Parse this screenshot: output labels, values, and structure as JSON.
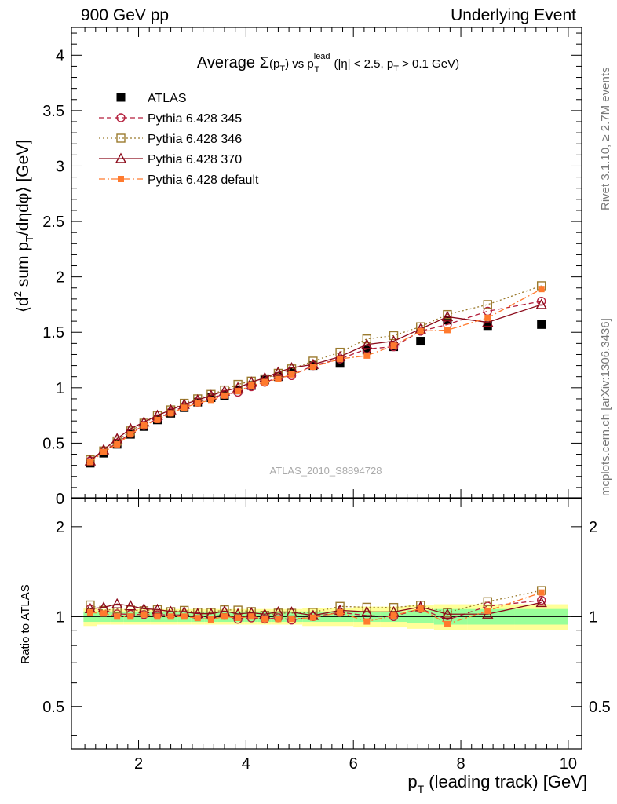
{
  "header": {
    "left": "900 GeV pp",
    "right": "Underlying Event"
  },
  "side_labels": {
    "rivet": "Rivet 3.1.10, ≥ 2.7M events",
    "mcplots": "mcplots.cern.ch [arXiv:1306.3436]"
  },
  "plot_title": {
    "prefix": "Average ",
    "sigma": "Σ",
    "arg": "(p",
    "arg_sub": "T",
    "arg_close": ")",
    "vs": " vs p",
    "vs_sup": "lead",
    "vs_sub": "T",
    "cond": " (|η| < 2.5, p",
    "cond_sub": "T",
    "cond_end": " > 0.1 GeV)"
  },
  "watermark": "ATLAS_2010_S8894728",
  "ratio_ylabel": "Ratio to ATLAS",
  "chart_data": {
    "type": "line",
    "x": [
      1.1,
      1.35,
      1.6,
      1.85,
      2.1,
      2.35,
      2.6,
      2.85,
      3.1,
      3.35,
      3.6,
      3.85,
      4.1,
      4.35,
      4.6,
      4.85,
      5.25,
      5.75,
      6.25,
      6.75,
      7.25,
      7.75,
      8.5,
      9.5
    ],
    "xlabel": "p_T (leading track) [GeV]",
    "ylabel": "⟨d² sum p_T/dηdφ⟩ [GeV]",
    "xlim": [
      0.75,
      10.25
    ],
    "ylim": [
      0,
      4.25
    ],
    "xticks": [
      2,
      4,
      6,
      8,
      10
    ],
    "yticks": [
      0,
      0.5,
      1,
      1.5,
      2,
      2.5,
      3,
      3.5,
      4
    ],
    "ratio_ylim": [
      0.36,
      2.5
    ],
    "ratio_yticks": [
      0.5,
      1,
      2
    ],
    "legend_position": "top-left",
    "series": [
      {
        "name": "ATLAS",
        "color": "#000000",
        "marker": "filled-square",
        "line": "none",
        "values": [
          0.32,
          0.41,
          0.49,
          0.58,
          0.65,
          0.71,
          0.77,
          0.82,
          0.87,
          0.91,
          0.93,
          0.98,
          1.02,
          1.07,
          1.1,
          1.14,
          1.2,
          1.22,
          1.34,
          1.37,
          1.42,
          1.61,
          1.56,
          1.57
        ]
      },
      {
        "name": "Pythia 6.428 345",
        "color": "#b41e3c",
        "marker": "open-circle",
        "line": "dashed",
        "values": [
          0.34,
          0.43,
          0.5,
          0.59,
          0.66,
          0.72,
          0.78,
          0.83,
          0.87,
          0.91,
          0.94,
          0.96,
          1.01,
          1.05,
          1.09,
          1.11,
          1.2,
          1.26,
          1.35,
          1.37,
          1.51,
          1.57,
          1.69,
          1.78
        ]
      },
      {
        "name": "Pythia 6.428 346",
        "color": "#9b7a2e",
        "marker": "open-square",
        "line": "dotted",
        "values": [
          0.35,
          0.43,
          0.52,
          0.61,
          0.68,
          0.75,
          0.8,
          0.86,
          0.9,
          0.94,
          0.98,
          1.03,
          1.06,
          1.08,
          1.13,
          1.17,
          1.24,
          1.32,
          1.44,
          1.47,
          1.55,
          1.66,
          1.75,
          1.92
        ]
      },
      {
        "name": "Pythia 6.428 370",
        "color": "#8b0a1a",
        "marker": "open-triangle",
        "line": "solid",
        "values": [
          0.34,
          0.44,
          0.54,
          0.63,
          0.69,
          0.75,
          0.8,
          0.85,
          0.89,
          0.93,
          0.97,
          1.0,
          1.05,
          1.09,
          1.14,
          1.18,
          1.21,
          1.28,
          1.39,
          1.42,
          1.53,
          1.64,
          1.59,
          1.75
        ]
      },
      {
        "name": "Pythia 6.428 default",
        "color": "#ff7a2e",
        "marker": "filled-small-square",
        "line": "dashdot",
        "values": [
          0.33,
          0.42,
          0.49,
          0.58,
          0.66,
          0.71,
          0.77,
          0.82,
          0.86,
          0.89,
          0.93,
          0.97,
          1.02,
          1.05,
          1.08,
          1.12,
          1.19,
          1.26,
          1.29,
          1.38,
          1.51,
          1.52,
          1.63,
          1.89
        ]
      }
    ],
    "uncertainty_band": {
      "inner_color": "#99ff99",
      "outer_color": "#ffff99",
      "inner_rel": [
        0.04,
        0.04,
        0.04,
        0.04,
        0.04,
        0.04,
        0.04,
        0.04,
        0.04,
        0.04,
        0.04,
        0.04,
        0.04,
        0.04,
        0.04,
        0.04,
        0.04,
        0.04,
        0.04,
        0.04,
        0.05,
        0.06,
        0.06,
        0.06
      ],
      "outer_rel": [
        0.07,
        0.06,
        0.06,
        0.06,
        0.06,
        0.06,
        0.06,
        0.06,
        0.06,
        0.06,
        0.06,
        0.06,
        0.06,
        0.06,
        0.06,
        0.06,
        0.07,
        0.07,
        0.08,
        0.08,
        0.09,
        0.1,
        0.1,
        0.1
      ]
    }
  }
}
